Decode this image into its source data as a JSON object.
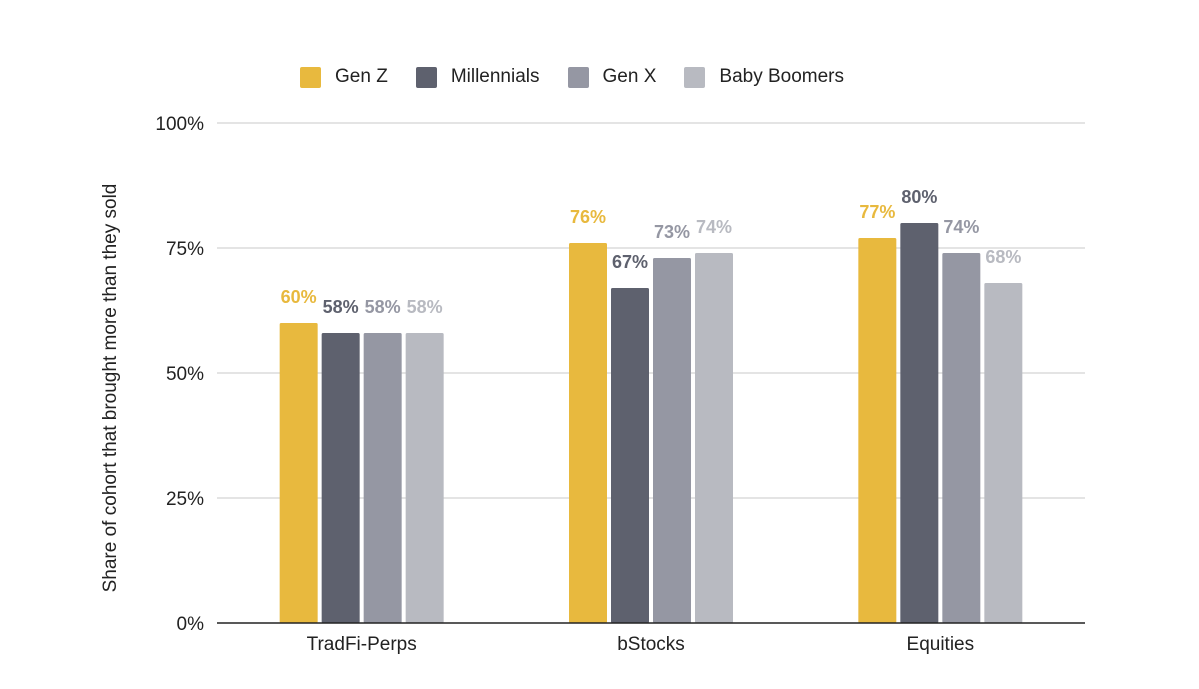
{
  "chart_data": {
    "type": "bar",
    "categories": [
      "TradFi-Perps",
      "bStocks",
      "Equities"
    ],
    "series": [
      {
        "name": "Gen Z",
        "color": "#E8B93E",
        "values": [
          60,
          76,
          77
        ],
        "labels": [
          "60%",
          "76%",
          "77%"
        ]
      },
      {
        "name": "Millennials",
        "color": "#5E616E",
        "values": [
          58,
          67,
          80
        ],
        "labels": [
          "58%",
          "67%",
          "80%"
        ]
      },
      {
        "name": "Gen X",
        "color": "#9597A3",
        "values": [
          58,
          73,
          74
        ],
        "labels": [
          "58%",
          "73%",
          "74%"
        ]
      },
      {
        "name": "Baby Boomers",
        "color": "#B8BAC1",
        "values": [
          58,
          74,
          68
        ],
        "labels": [
          "58%",
          "74%",
          "68%"
        ]
      }
    ],
    "yticks": [
      "0%",
      "25%",
      "50%",
      "75%",
      "100%"
    ],
    "ylim": [
      0,
      100
    ],
    "ylabel": "Share of cohort that brought more than they sold",
    "xlabel": "",
    "legend_position": "top",
    "grid": true
  }
}
